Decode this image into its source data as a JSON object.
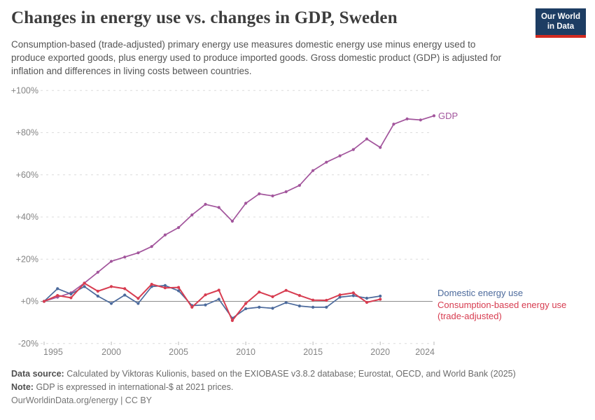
{
  "header": {
    "title": "Changes in energy use vs. changes in GDP, Sweden",
    "subtitle": "Consumption-based (trade-adjusted) primary energy use measures domestic energy use minus energy used to produce exported goods, plus energy used to produce imported goods. Gross domestic product (GDP) is adjusted for inflation and differences in living costs between countries.",
    "logo": {
      "line1": "Our World",
      "line2": "in Data",
      "bg_color": "#1d3d63",
      "bar_color": "#d22a20"
    }
  },
  "chart_data": {
    "type": "line",
    "title": "Changes in energy use vs. changes in GDP, Sweden",
    "xlabel": "",
    "ylabel": "",
    "unit": "% change since 1995",
    "xlim": [
      1995,
      2024
    ],
    "ylim": [
      -20,
      100
    ],
    "grid": "horizontal-dashed",
    "legend_position": "inline-right",
    "x": [
      1995,
      1996,
      1997,
      1998,
      1999,
      2000,
      2001,
      2002,
      2003,
      2004,
      2005,
      2006,
      2007,
      2008,
      2009,
      2010,
      2011,
      2012,
      2013,
      2014,
      2015,
      2016,
      2017,
      2018,
      2019,
      2020,
      2021,
      2022,
      2023,
      2024
    ],
    "x_ticks": [
      1995,
      2000,
      2005,
      2010,
      2015,
      2020,
      2024
    ],
    "y_ticks": [
      {
        "value": 100,
        "label": "+100%"
      },
      {
        "value": 80,
        "label": "+80%"
      },
      {
        "value": 60,
        "label": "+60%"
      },
      {
        "value": 40,
        "label": "+40%"
      },
      {
        "value": 20,
        "label": "+20%"
      },
      {
        "value": 0,
        "label": "+0%"
      },
      {
        "value": -20,
        "label": "-20%"
      }
    ],
    "series": [
      {
        "name": "GDP",
        "label": "GDP",
        "color": "#a2559c",
        "width": 1.7,
        "values": [
          0,
          2,
          4,
          8.7,
          13.8,
          19,
          21,
          23,
          26,
          31.5,
          35,
          41,
          46,
          44.5,
          38,
          46.5,
          51,
          50,
          52,
          55,
          62,
          66,
          69,
          72,
          77,
          73,
          84,
          86.5,
          86,
          88
        ]
      },
      {
        "name": "Domestic energy use",
        "label": "Domestic energy use",
        "color": "#4c6a9c",
        "width": 1.7,
        "values": [
          0,
          6,
          3.5,
          7,
          2.5,
          -1,
          3,
          -1,
          7,
          7.5,
          5,
          -2,
          -1.7,
          1,
          -8,
          -3.5,
          -2.8,
          -3.3,
          -0.6,
          -2.2,
          -2.8,
          -2.8,
          2,
          2.7,
          1.5,
          2.5,
          null,
          null,
          null,
          null
        ]
      },
      {
        "name": "Consumption-based energy use (trade-adjusted)",
        "label": "Consumption-based energy use",
        "label2": "(trade-adjusted)",
        "color": "#d73c50",
        "width": 2,
        "values": [
          0,
          2.8,
          1.7,
          8.6,
          4.8,
          7,
          6,
          1.4,
          8.1,
          6.4,
          6.6,
          -2.8,
          3.1,
          5.3,
          -9.1,
          -1,
          4.4,
          2.2,
          5.2,
          2.8,
          0.6,
          0.5,
          3.1,
          4,
          -0.5,
          1,
          null,
          null,
          null,
          null
        ]
      }
    ]
  },
  "footer": {
    "datasource_label": "Data source:",
    "datasource_text": "Calculated by Viktoras Kulionis, based on the EXIOBASE v3.8.2 database; Eurostat, OECD, and World Bank (2025)",
    "note_label": "Note:",
    "note_text": "GDP is expressed in international-$ at 2021 prices.",
    "citation": "OurWorldinData.org/energy | CC BY"
  }
}
